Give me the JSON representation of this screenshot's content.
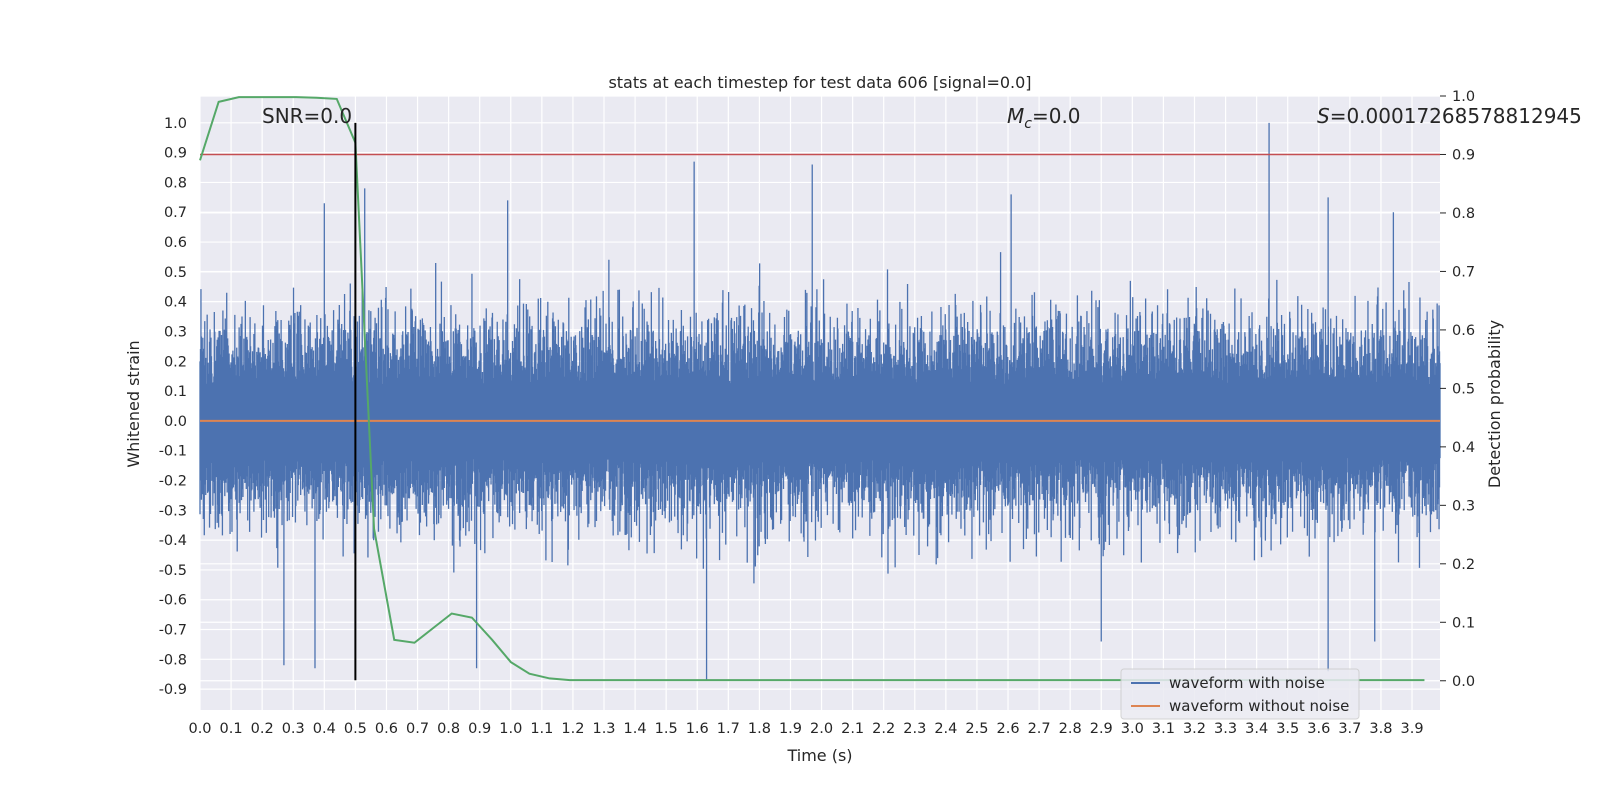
{
  "chart_data": {
    "type": "line",
    "title": "stats at each timestep for test data 606 [signal=0.0]",
    "xlabel": "Time (s)",
    "ylabel": "Whitened strain",
    "ylabel_right": "Detection probability",
    "xlim": [
      0.0,
      3.99
    ],
    "ylim": [
      -0.97,
      1.09
    ],
    "ylim_right": [
      -0.05,
      1.0
    ],
    "x_ticks": [
      "0.0",
      "0.1",
      "0.2",
      "0.3",
      "0.4",
      "0.5",
      "0.6",
      "0.7",
      "0.8",
      "0.9",
      "1.0",
      "1.1",
      "1.2",
      "1.3",
      "1.4",
      "1.5",
      "1.6",
      "1.7",
      "1.8",
      "1.9",
      "2.0",
      "2.1",
      "2.2",
      "2.3",
      "2.4",
      "2.5",
      "2.6",
      "2.7",
      "2.8",
      "2.9",
      "3.0",
      "3.1",
      "3.2",
      "3.3",
      "3.4",
      "3.5",
      "3.6",
      "3.7",
      "3.8",
      "3.9"
    ],
    "y_ticks": [
      "1.0",
      "0.9",
      "0.8",
      "0.7",
      "0.6",
      "0.5",
      "0.4",
      "0.3",
      "0.2",
      "0.1",
      "0.0",
      "-0.1",
      "-0.2",
      "-0.3",
      "-0.4",
      "-0.5",
      "-0.6",
      "-0.7",
      "-0.8",
      "-0.9"
    ],
    "y_ticks_right": [
      "1.0",
      "0.9",
      "0.8",
      "0.7",
      "0.6",
      "0.5",
      "0.4",
      "0.3",
      "0.2",
      "0.1",
      "0.0"
    ],
    "annotations": {
      "snr": "SNR=0.0",
      "mc": "M_c=0.0",
      "mc_base": "M",
      "mc_sub": "c",
      "mc_value": "=0.0",
      "s": "S=0.00017268578812945",
      "s_base": "S",
      "s_value": "=0.00017268578812945"
    },
    "series": [
      {
        "name": "waveform with noise",
        "color": "#4c72b0",
        "description": "dense noisy whitened strain, mostly between -0.5 and 0.5",
        "peaks": [
          {
            "x": 0.4,
            "y": 0.73
          },
          {
            "x": 0.53,
            "y": 0.78
          },
          {
            "x": 0.99,
            "y": 0.74
          },
          {
            "x": 1.59,
            "y": 0.87
          },
          {
            "x": 1.97,
            "y": 0.86
          },
          {
            "x": 2.61,
            "y": 0.76
          },
          {
            "x": 3.44,
            "y": 1.0
          },
          {
            "x": 3.63,
            "y": 0.75
          },
          {
            "x": 3.84,
            "y": 0.7
          }
        ],
        "troughs": [
          {
            "x": 0.27,
            "y": -0.82
          },
          {
            "x": 0.37,
            "y": -0.83
          },
          {
            "x": 0.89,
            "y": -0.83
          },
          {
            "x": 1.63,
            "y": -0.87
          },
          {
            "x": 2.9,
            "y": -0.74
          },
          {
            "x": 3.63,
            "y": -0.84
          },
          {
            "x": 3.78,
            "y": -0.74
          }
        ]
      },
      {
        "name": "waveform without noise",
        "color": "#dd8452",
        "x": [
          0.0,
          3.99
        ],
        "y": [
          0.0,
          0.0
        ]
      },
      {
        "name": "detection probability",
        "color": "#55a868",
        "axis": "right",
        "x": [
          0.0,
          0.06,
          0.125,
          0.19,
          0.25,
          0.31,
          0.375,
          0.44,
          0.5,
          0.56,
          0.625,
          0.69,
          0.75,
          0.81,
          0.875,
          0.94,
          1.0,
          1.06,
          1.125,
          1.19,
          1.25,
          3.94
        ],
        "y": [
          0.89,
          0.99,
          0.998,
          0.998,
          0.998,
          0.998,
          0.997,
          0.995,
          0.92,
          0.26,
          0.07,
          0.065,
          0.09,
          0.115,
          0.108,
          0.07,
          0.032,
          0.012,
          0.004,
          0.001,
          0.001,
          0.001
        ]
      }
    ],
    "threshold_line": {
      "axis": "right",
      "y": 0.9,
      "color": "#c44e52"
    },
    "marker_line": {
      "x": 0.5,
      "color": "#000000"
    },
    "legend": {
      "placement": "lower-right",
      "entries": [
        {
          "label": "waveform with noise",
          "color": "#4c72b0"
        },
        {
          "label": "waveform without noise",
          "color": "#dd8452"
        }
      ]
    },
    "background": "#eaeaf2",
    "grid": true
  }
}
